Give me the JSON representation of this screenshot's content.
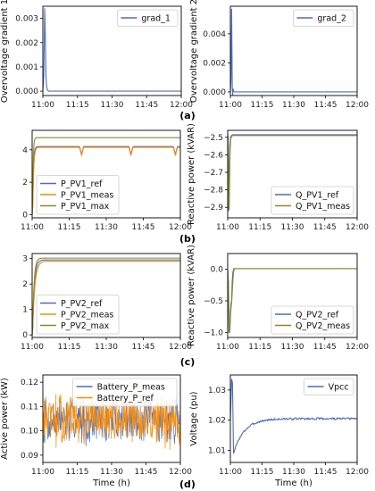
{
  "colors": {
    "blue": "#4a6fc4",
    "orange": "#ff8c00",
    "olive": "#8a8b2a",
    "gray": "#808080"
  },
  "panel_letters": [
    "(a)",
    "(b)",
    "(c)",
    "(d)"
  ],
  "chart_data": [
    {
      "id": "a_left",
      "type": "line",
      "ylabel": "Overvoltage gradient 1",
      "xlabel": "",
      "xticks": [
        "11:00",
        "11:15",
        "11:30",
        "11:45",
        "12:00"
      ],
      "xlim": [
        0,
        60
      ],
      "ylim": [
        -0.00018,
        0.0035
      ],
      "yticks": [
        0,
        0.001,
        0.002,
        0.003
      ],
      "ytick_labels": [
        "0.000",
        "0.001",
        "0.002",
        "0.003"
      ],
      "legend_loc": "top-right",
      "series": [
        {
          "name": "grad_1",
          "color": "blue",
          "x": [
            0,
            0.4,
            0.8,
            1.1,
            1.3,
            1.6,
            2.0,
            2.5,
            3.0,
            60
          ],
          "y": [
            0,
            0.0006,
            0.0034,
            0.0021,
            0.0008,
            0.0002,
            5e-05,
            0,
            0,
            0
          ]
        }
      ]
    },
    {
      "id": "a_right",
      "type": "line",
      "ylabel": "Overvoltage gradient 2",
      "xlabel": "",
      "xticks": [
        "11:00",
        "11:15",
        "11:30",
        "11:45",
        "12:00"
      ],
      "xlim": [
        0,
        60
      ],
      "ylim": [
        -0.00025,
        0.0059
      ],
      "yticks": [
        0,
        0.002,
        0.004
      ],
      "ytick_labels": [
        "0.000",
        "0.002",
        "0.004"
      ],
      "legend_loc": "top-right",
      "series": [
        {
          "name": "grad_2",
          "color": "blue",
          "x": [
            0,
            0.3,
            0.6,
            0.9,
            1.1,
            1.3,
            1.5,
            1.8,
            2.2,
            2.8,
            60
          ],
          "y": [
            0,
            0.0008,
            0.0057,
            0.0003,
            -0.0002,
            0.0002,
            0.0001,
            0,
            0,
            0,
            0
          ]
        }
      ]
    },
    {
      "id": "b_left",
      "type": "line",
      "ylabel": "Active power (kW)",
      "xlabel": "",
      "xticks": [
        "11:00",
        "11:15",
        "11:30",
        "11:45",
        "12:00"
      ],
      "xlim": [
        0,
        60
      ],
      "ylim": [
        -0.2,
        5.2
      ],
      "yticks": [
        0,
        2,
        4
      ],
      "ytick_labels": [
        "0",
        "2",
        "4"
      ],
      "legend_loc": "bottom-left",
      "series": [
        {
          "name": "P_PV1_ref",
          "color": "blue",
          "generator": "pv_ref",
          "params": {
            "plateau": 4.2,
            "rise": 0.9,
            "dips": [
              20,
              40,
              58
            ],
            "dip_depth": 0.5
          }
        },
        {
          "name": "P_PV1_meas",
          "color": "orange",
          "generator": "pv_ref",
          "params": {
            "plateau": 4.15,
            "rise": 1.1,
            "dips": [
              20,
              40,
              58
            ],
            "dip_depth": 0.5
          }
        },
        {
          "name": "P_PV1_max",
          "color": "olive",
          "generator": "pv_max",
          "params": {
            "plateau": 4.75,
            "rise": 0.8
          }
        }
      ]
    },
    {
      "id": "b_right",
      "type": "line",
      "ylabel": "Reactive power (kVAR)",
      "xlabel": "",
      "xticks": [
        "11:00",
        "11:15",
        "11:30",
        "11:45",
        "12:00"
      ],
      "xlim": [
        0,
        60
      ],
      "ylim": [
        -2.96,
        -2.46
      ],
      "yticks": [
        -2.9,
        -2.8,
        -2.7,
        -2.6,
        -2.5
      ],
      "ytick_labels": [
        "−2.9",
        "−2.8",
        "−2.7",
        "−2.6",
        "−2.5"
      ],
      "legend_loc": "bottom-right",
      "series": [
        {
          "name": "Q_PV1_ref",
          "color": "blue",
          "x": [
            0,
            0.2,
            0.4,
            0.6,
            0.8,
            1.0,
            1.3,
            1.7,
            2.2,
            3,
            60
          ],
          "y": [
            -2.48,
            -2.5,
            -2.92,
            -2.9,
            -2.7,
            -2.55,
            -2.5,
            -2.49,
            -2.485,
            -2.485,
            -2.485
          ]
        },
        {
          "name": "Q_PV1_meas",
          "color": "olive",
          "x": [
            0,
            0.25,
            0.5,
            0.7,
            0.9,
            1.1,
            1.4,
            1.8,
            2.3,
            3,
            60
          ],
          "y": [
            -2.48,
            -2.55,
            -2.85,
            -2.91,
            -2.75,
            -2.58,
            -2.51,
            -2.495,
            -2.49,
            -2.49,
            -2.49
          ]
        }
      ]
    },
    {
      "id": "c_left",
      "type": "line",
      "ylabel": "Active power (kW)",
      "xlabel": "",
      "xticks": [
        "11:00",
        "11:15",
        "11:30",
        "11:45",
        "12:00"
      ],
      "xlim": [
        0,
        60
      ],
      "ylim": [
        -0.1,
        3.2
      ],
      "yticks": [
        0,
        1,
        2,
        3
      ],
      "ytick_labels": [
        "0",
        "1",
        "2",
        "3"
      ],
      "legend_loc": "bottom-left",
      "series": [
        {
          "name": "P_PV2_ref",
          "color": "blue",
          "generator": "pv2",
          "params": {
            "plateau": 2.95,
            "rise": 1.6
          }
        },
        {
          "name": "P_PV2_meas",
          "color": "orange",
          "generator": "pv2",
          "params": {
            "plateau": 2.9,
            "rise": 2.0
          }
        },
        {
          "name": "P_PV2_max",
          "color": "olive",
          "generator": "pv2",
          "params": {
            "plateau": 3.02,
            "rise": 1.3
          }
        }
      ]
    },
    {
      "id": "c_right",
      "type": "line",
      "ylabel": "Reactive power (kVAR)",
      "xlabel": "",
      "xticks": [
        "11:00",
        "11:15",
        "11:30",
        "11:45",
        "12:00"
      ],
      "xlim": [
        0,
        60
      ],
      "ylim": [
        -1.08,
        0.25
      ],
      "yticks": [
        -1.0,
        -0.5,
        0.0
      ],
      "ytick_labels": [
        "−1.0",
        "−0.5",
        "0.0"
      ],
      "legend_loc": "bottom-right",
      "series": [
        {
          "name": "Q_PV2_ref",
          "color": "blue",
          "x": [
            0,
            0.3,
            0.6,
            0.9,
            1.2,
            1.5,
            1.8,
            2.1,
            2.4,
            2.8,
            3.2,
            60
          ],
          "y": [
            0,
            -0.2,
            -1.0,
            -0.98,
            -0.7,
            -0.55,
            -0.5,
            -0.2,
            -0.05,
            0.01,
            0.01,
            0.01
          ]
        },
        {
          "name": "Q_PV2_meas",
          "color": "olive",
          "x": [
            0,
            0.4,
            0.7,
            1.0,
            1.3,
            1.6,
            1.9,
            2.3,
            2.7,
            3.1,
            3.5,
            60
          ],
          "y": [
            0,
            -0.3,
            -0.95,
            -1.0,
            -0.75,
            -0.6,
            -0.5,
            -0.25,
            -0.05,
            0.01,
            0.01,
            0.01
          ]
        }
      ]
    },
    {
      "id": "d_left",
      "type": "line",
      "ylabel": "Active power (kW)",
      "xlabel": "Time (h)",
      "xticks": [
        "11:00",
        "11:15",
        "11:30",
        "11:45",
        "12:00"
      ],
      "xlim": [
        0,
        60
      ],
      "ylim": [
        0.087,
        0.123
      ],
      "yticks": [
        0.09,
        0.1,
        0.11,
        0.12
      ],
      "ytick_labels": [
        "0.09",
        "0.10",
        "0.11",
        "0.12"
      ],
      "legend_loc": "top-right",
      "series": [
        {
          "name": "Battery_P_meas",
          "color": "blue",
          "generator": "noise",
          "params": {
            "mean": 0.1045,
            "amp": 0.011,
            "seed": 7,
            "step": 0.2
          }
        },
        {
          "name": "Battery_P_ref",
          "color": "orange",
          "generator": "noise",
          "params": {
            "mean": 0.1045,
            "amp": 0.0125,
            "seed": 13,
            "step": 0.2
          }
        }
      ]
    },
    {
      "id": "d_right",
      "type": "line",
      "ylabel": "Voltage (pu)",
      "xlabel": "Time (h)",
      "xticks": [
        "11:00",
        "11:15",
        "11:30",
        "11:45",
        "12:00"
      ],
      "xlim": [
        0,
        60
      ],
      "ylim": [
        1.006,
        1.035
      ],
      "yticks": [
        1.01,
        1.02,
        1.03
      ],
      "ytick_labels": [
        "1.01",
        "1.02",
        "1.03"
      ],
      "legend_loc": "top-right",
      "series": [
        {
          "name": "Vpcc",
          "color": "blue",
          "generator": "vpcc",
          "params": {
            "start": 1.02,
            "peak": 1.0335,
            "trough": 1.009,
            "final": 1.0205,
            "seed": 3
          }
        }
      ]
    }
  ]
}
